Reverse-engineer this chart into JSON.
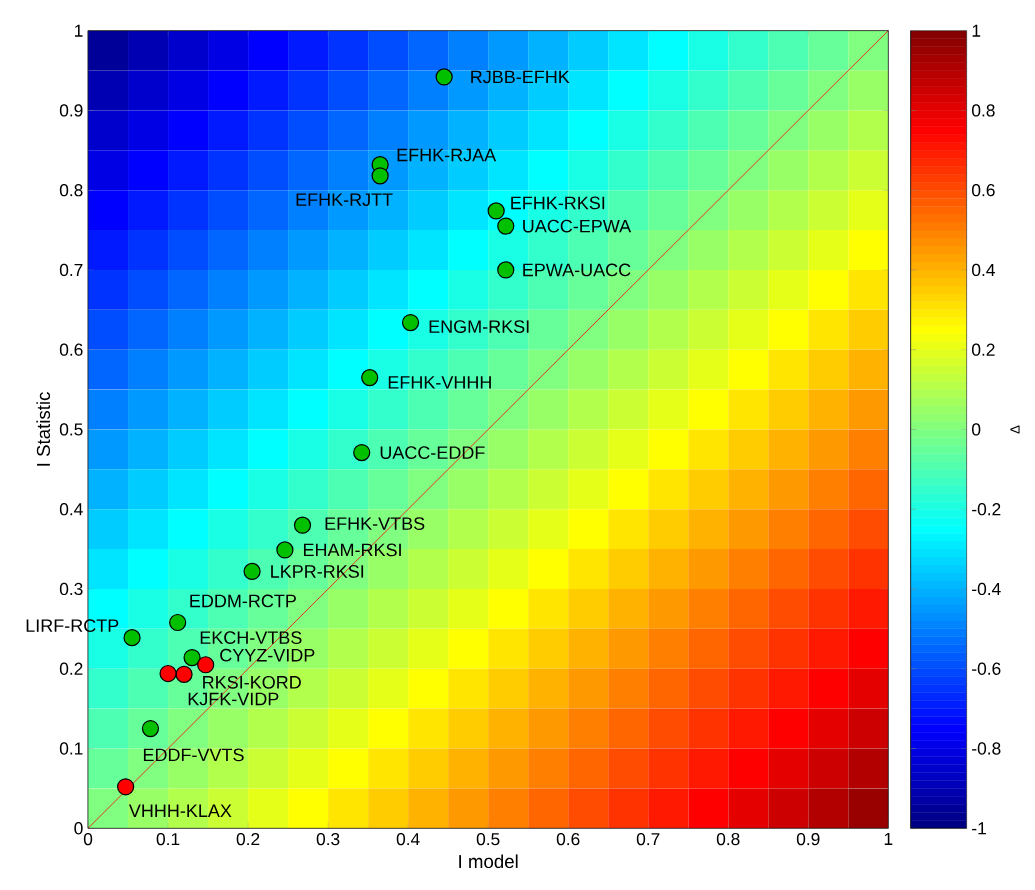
{
  "chart_data": [
    {
      "type": "heatmap",
      "clabel": "Δ",
      "categories": [
        null,
        null,
        null,
        null,
        null,
        null,
        null,
        null,
        null,
        null,
        null,
        null,
        null,
        null,
        null,
        null,
        null,
        null,
        null,
        null
      ],
      "y_categories": [
        null,
        null,
        null,
        null,
        null,
        null,
        null,
        null,
        null,
        null,
        null,
        null,
        null,
        null,
        null,
        null,
        null,
        null,
        null,
        null
      ],
      "clim": [
        -1,
        1
      ],
      "cticks": [
        -1,
        -0.8,
        -0.6,
        -0.4,
        -0.2,
        0,
        0.2,
        0.4,
        0.6,
        0.8,
        1
      ],
      "cells": [
        [
          -0.95,
          -0.9,
          -0.85,
          -0.8,
          -0.75,
          -0.7,
          -0.65,
          -0.6,
          -0.55,
          -0.5,
          -0.45,
          -0.4,
          -0.35,
          -0.3,
          -0.25,
          -0.2,
          -0.15,
          -0.1,
          -0.05,
          0
        ],
        [
          -0.9,
          -0.85,
          -0.8,
          -0.75,
          -0.7,
          -0.65,
          -0.6,
          -0.55,
          -0.5,
          -0.45,
          -0.4,
          -0.35,
          -0.3,
          -0.25,
          -0.2,
          -0.15,
          -0.1,
          -0.05,
          0,
          0.05
        ],
        [
          -0.85,
          -0.8,
          -0.75,
          -0.7,
          -0.65,
          -0.6,
          -0.55,
          -0.5,
          -0.45,
          -0.4,
          -0.35,
          -0.3,
          -0.25,
          -0.2,
          -0.15,
          -0.1,
          -0.05,
          0,
          0.05,
          0.1
        ],
        [
          -0.8,
          -0.75,
          -0.7,
          -0.65,
          -0.6,
          -0.55,
          -0.5,
          -0.45,
          -0.4,
          -0.35,
          -0.3,
          -0.25,
          -0.2,
          -0.15,
          -0.1,
          -0.05,
          0,
          0.05,
          0.1,
          0.15
        ],
        [
          -0.75,
          -0.7,
          -0.65,
          -0.6,
          -0.55,
          -0.5,
          -0.45,
          -0.4,
          -0.35,
          -0.3,
          -0.25,
          -0.2,
          -0.15,
          -0.1,
          -0.05,
          0,
          0.05,
          0.1,
          0.15,
          0.2
        ],
        [
          -0.7,
          -0.65,
          -0.6,
          -0.55,
          -0.5,
          -0.45,
          -0.4,
          -0.35,
          -0.3,
          -0.25,
          -0.2,
          -0.15,
          -0.1,
          -0.05,
          0,
          0.05,
          0.1,
          0.15,
          0.2,
          0.25
        ],
        [
          -0.65,
          -0.6,
          -0.55,
          -0.5,
          -0.45,
          -0.4,
          -0.35,
          -0.3,
          -0.25,
          -0.2,
          -0.15,
          -0.1,
          -0.05,
          0,
          0.05,
          0.1,
          0.15,
          0.2,
          0.25,
          0.3
        ],
        [
          -0.6,
          -0.55,
          -0.5,
          -0.45,
          -0.4,
          -0.35,
          -0.3,
          -0.25,
          -0.2,
          -0.15,
          -0.1,
          -0.05,
          0,
          0.05,
          0.1,
          0.15,
          0.2,
          0.25,
          0.3,
          0.35
        ],
        [
          -0.55,
          -0.5,
          -0.45,
          -0.4,
          -0.35,
          -0.3,
          -0.25,
          -0.2,
          -0.15,
          -0.1,
          -0.05,
          0,
          0.05,
          0.1,
          0.15,
          0.2,
          0.25,
          0.3,
          0.35,
          0.4
        ],
        [
          -0.5,
          -0.45,
          -0.4,
          -0.35,
          -0.3,
          -0.25,
          -0.2,
          -0.15,
          -0.1,
          -0.05,
          0,
          0.05,
          0.1,
          0.15,
          0.2,
          0.25,
          0.3,
          0.35,
          0.4,
          0.45
        ],
        [
          -0.45,
          -0.4,
          -0.35,
          -0.3,
          -0.25,
          -0.2,
          -0.15,
          -0.1,
          -0.05,
          0,
          0.05,
          0.1,
          0.15,
          0.2,
          0.25,
          0.3,
          0.35,
          0.4,
          0.45,
          0.5
        ],
        [
          -0.4,
          -0.35,
          -0.3,
          -0.25,
          -0.2,
          -0.15,
          -0.1,
          -0.05,
          0,
          0.05,
          0.1,
          0.15,
          0.2,
          0.25,
          0.3,
          0.35,
          0.4,
          0.45,
          0.5,
          0.55
        ],
        [
          -0.35,
          -0.3,
          -0.25,
          -0.2,
          -0.15,
          -0.1,
          -0.05,
          0,
          0.05,
          0.1,
          0.15,
          0.2,
          0.25,
          0.3,
          0.35,
          0.4,
          0.45,
          0.5,
          0.55,
          0.6
        ],
        [
          -0.3,
          -0.25,
          -0.2,
          -0.15,
          -0.1,
          -0.05,
          0,
          0.05,
          0.1,
          0.15,
          0.2,
          0.25,
          0.3,
          0.35,
          0.4,
          0.45,
          0.5,
          0.55,
          0.6,
          0.65
        ],
        [
          -0.25,
          -0.2,
          -0.15,
          -0.1,
          -0.05,
          0,
          0.05,
          0.1,
          0.15,
          0.2,
          0.25,
          0.3,
          0.35,
          0.4,
          0.45,
          0.5,
          0.55,
          0.6,
          0.65,
          0.7
        ],
        [
          -0.2,
          -0.15,
          -0.1,
          -0.05,
          0,
          0.05,
          0.1,
          0.15,
          0.2,
          0.25,
          0.3,
          0.35,
          0.4,
          0.45,
          0.5,
          0.55,
          0.6,
          0.65,
          0.7,
          0.75
        ],
        [
          -0.15,
          -0.1,
          -0.05,
          0,
          0.05,
          0.1,
          0.15,
          0.2,
          0.25,
          0.3,
          0.35,
          0.4,
          0.45,
          0.5,
          0.55,
          0.6,
          0.65,
          0.7,
          0.75,
          0.8
        ],
        [
          -0.1,
          -0.05,
          0,
          0.05,
          0.1,
          0.15,
          0.2,
          0.25,
          0.3,
          0.35,
          0.4,
          0.45,
          0.5,
          0.55,
          0.6,
          0.65,
          0.7,
          0.75,
          0.8,
          0.85
        ],
        [
          -0.05,
          0,
          0.05,
          0.1,
          0.15,
          0.2,
          0.25,
          0.3,
          0.35,
          0.4,
          0.45,
          0.5,
          0.55,
          0.6,
          0.65,
          0.7,
          0.75,
          0.8,
          0.85,
          0.9
        ],
        [
          0,
          0.05,
          0.1,
          0.15,
          0.2,
          0.25,
          0.3,
          0.35,
          0.4,
          0.45,
          0.5,
          0.55,
          0.6,
          0.65,
          0.7,
          0.75,
          0.8,
          0.85,
          0.9,
          0.95
        ]
      ]
    },
    {
      "type": "scatter",
      "xlabel": "I model",
      "ylabel": "I Statistic",
      "xlim": [
        0,
        1
      ],
      "ylim": [
        0,
        1
      ],
      "xticks": [
        0,
        0.1,
        0.2,
        0.3,
        0.4,
        0.5,
        0.6,
        0.7,
        0.8,
        0.9,
        1
      ],
      "yticks": [
        0,
        0.1,
        0.2,
        0.3,
        0.4,
        0.5,
        0.6,
        0.7,
        0.8,
        0.9,
        1
      ],
      "grid": false,
      "series": [
        {
          "type": "line",
          "marker": "none",
          "color": "#ff0000",
          "x": [
            0,
            1
          ],
          "values": [
            0,
            1
          ]
        },
        {
          "type": "scatter",
          "marker": "circle",
          "x": [
            0.445,
            0.365,
            0.365,
            0.51,
            0.522,
            0.522,
            0.403,
            0.352,
            0.342,
            0.268,
            0.246,
            0.205,
            0.112,
            0.055,
            0.13,
            0.147,
            0.12,
            0.1,
            0.078,
            0.047
          ],
          "values": [
            0.942,
            0.832,
            0.818,
            0.774,
            0.755,
            0.7,
            0.634,
            0.565,
            0.471,
            0.38,
            0.349,
            0.322,
            0.258,
            0.239,
            0.214,
            0.205,
            0.193,
            0.194,
            0.125,
            0.052
          ],
          "colors": [
            "#00c000",
            "#00c000",
            "#00c000",
            "#00c000",
            "#00c000",
            "#00c000",
            "#00c000",
            "#00c000",
            "#00c000",
            "#00c000",
            "#00c000",
            "#00c000",
            "#00c000",
            "#00c000",
            "#00c000",
            "#ff0000",
            "#ff0000",
            "#ff0000",
            "#00c000",
            "#ff0000"
          ]
        }
      ],
      "annotations": [
        {
          "text": "RJBB-EFHK",
          "x": 0.445,
          "y": 0.942
        },
        {
          "text": "EFHK-RJAA",
          "x": 0.365,
          "y": 0.832
        },
        {
          "text": "EFHK-RJTT",
          "x": 0.365,
          "y": 0.818
        },
        {
          "text": "EFHK-RKSI",
          "x": 0.51,
          "y": 0.774
        },
        {
          "text": "UACC-EPWA",
          "x": 0.522,
          "y": 0.755
        },
        {
          "text": "EPWA-UACC",
          "x": 0.522,
          "y": 0.7
        },
        {
          "text": "ENGM-RKSI",
          "x": 0.403,
          "y": 0.634
        },
        {
          "text": "EFHK-VHHH",
          "x": 0.352,
          "y": 0.565
        },
        {
          "text": "UACC-EDDF",
          "x": 0.342,
          "y": 0.471
        },
        {
          "text": "EFHK-VTBS",
          "x": 0.268,
          "y": 0.38
        },
        {
          "text": "EHAM-RKSI",
          "x": 0.246,
          "y": 0.349
        },
        {
          "text": "LKPR-RKSI",
          "x": 0.205,
          "y": 0.322
        },
        {
          "text": "EDDM-RCTP",
          "x": 0.112,
          "y": 0.258
        },
        {
          "text": "LIRF-RCTP",
          "x": 0.055,
          "y": 0.239
        },
        {
          "text": "EKCH-VTBS",
          "x": 0.13,
          "y": 0.214
        },
        {
          "text": "CYYZ-VIDP",
          "x": 0.147,
          "y": 0.205
        },
        {
          "text": "RKSI-KORD",
          "x": 0.12,
          "y": 0.193
        },
        {
          "text": "KJFK-VIDP",
          "x": 0.1,
          "y": 0.194
        },
        {
          "text": "EDDF-VVTS",
          "x": 0.078,
          "y": 0.125
        },
        {
          "text": "VHHH-KLAX",
          "x": 0.047,
          "y": 0.052
        }
      ]
    }
  ]
}
